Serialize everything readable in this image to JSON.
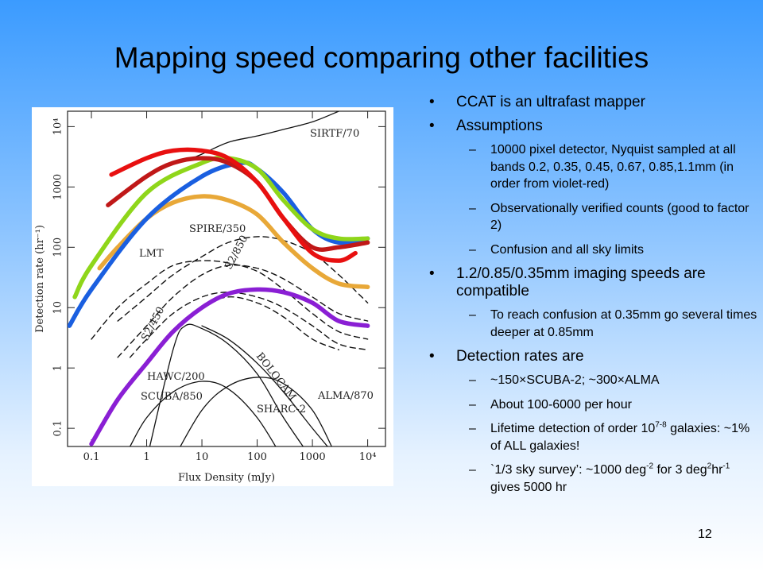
{
  "title": "Mapping speed comparing other facilities",
  "bullets": [
    {
      "text": "CCAT is an ultrafast mapper"
    },
    {
      "text": "Assumptions",
      "sub": [
        "10000 pixel detector, Nyquist sampled at all bands 0.2, 0.35, 0.45, 0.67, 0.85,1.1mm (in order from violet-red)",
        "Observationally verified counts (good to factor 2)",
        "Confusion and all sky limits"
      ]
    },
    {
      "text": "1.2/0.85/0.35mm imaging speeds are compatible",
      "sub": [
        "To reach confusion at 0.35mm go several times deeper at 0.85mm"
      ]
    },
    {
      "text": "Detection rates are",
      "sub": [
        "~150×SCUBA-2; ~300×ALMA",
        "About 100-6000 per hour",
        [
          "Lifetime detection of order 10",
          {
            "sup": "7-8"
          },
          " galaxies: ~1% of ALL galaxies!"
        ],
        [
          "`1/3 sky survey’: ~1000 deg",
          {
            "sup": "-2"
          },
          " for 3 deg",
          {
            "sup": "2"
          },
          "hr",
          {
            "sup": "-1"
          },
          " gives 5000 hr"
        ]
      ]
    }
  ],
  "page_number": "12",
  "chart_data": {
    "type": "line",
    "xlabel": "Flux Density (mJy)",
    "ylabel": "Detection rate (hr⁻¹)",
    "log_x": true,
    "log_y": true,
    "xlim": [
      0.037,
      21000
    ],
    "ylim": [
      0.05,
      18000
    ],
    "xticks": [
      0.1,
      1,
      10,
      100,
      1000,
      {
        "value": 10000,
        "label": "10⁴"
      }
    ],
    "yticks": [
      0.1,
      1,
      10,
      100,
      1000,
      {
        "value": 10000,
        "label": "10⁴"
      }
    ],
    "grid": false,
    "annotations": [
      "SIRTF/70",
      "SPIRE/350",
      "LMT",
      "S2/850",
      "S2/450",
      "HAWC/200",
      "BOLOCAM",
      "SCUBA/850",
      "SHARC-2",
      "ALMA/870"
    ],
    "series": [
      {
        "color": "#111111",
        "style": "solid",
        "x": [
          5,
          10,
          30,
          100,
          300,
          1000,
          3000
        ],
        "values": [
          2700,
          3500,
          5500,
          7000,
          9000,
          12000,
          18000
        ]
      },
      {
        "color": "#111111",
        "style": "dashed",
        "x": [
          0.3,
          1,
          3,
          10,
          30,
          100,
          300,
          1000,
          3000,
          10000
        ],
        "values": [
          6,
          15,
          35,
          70,
          120,
          150,
          130,
          80,
          35,
          12
        ]
      },
      {
        "color": "#111111",
        "style": "dashed",
        "x": [
          0.1,
          0.3,
          1,
          3,
          10,
          30,
          100,
          300,
          1000,
          3000,
          10000
        ],
        "values": [
          3,
          10,
          25,
          50,
          60,
          55,
          40,
          20,
          8,
          4,
          3
        ]
      },
      {
        "color": "#111111",
        "style": "dashed",
        "x": [
          0.3,
          1,
          3,
          10,
          30,
          100,
          300,
          1000,
          3000,
          10000
        ],
        "values": [
          1.5,
          5,
          15,
          35,
          50,
          45,
          30,
          15,
          8,
          6
        ]
      },
      {
        "color": "#111111",
        "style": "dashed",
        "x": [
          0.5,
          1,
          3,
          10,
          30,
          100,
          300,
          1000,
          3000,
          10000
        ],
        "values": [
          1.5,
          3,
          8,
          15,
          18,
          15,
          10,
          5,
          2.5,
          2
        ]
      },
      {
        "color": "#111111",
        "style": "dashed",
        "x": [
          0.8,
          3,
          10,
          30,
          100,
          300,
          1000,
          3000
        ],
        "values": [
          1,
          4,
          10,
          15,
          12,
          7,
          3,
          2
        ]
      },
      {
        "color": "#111111",
        "style": "solid",
        "x": [
          1,
          3,
          5,
          10,
          30,
          100,
          300,
          1000
        ],
        "values": [
          0.03,
          2,
          5,
          4.5,
          2.5,
          0.8,
          0.15,
          0.03
        ]
      },
      {
        "color": "#111111",
        "style": "solid",
        "x": [
          10,
          30,
          100,
          300,
          1000,
          3000
        ],
        "values": [
          5,
          3,
          1.2,
          0.4,
          0.1,
          0.03
        ]
      },
      {
        "color": "#111111",
        "style": "solid",
        "x": [
          0.5,
          1,
          3,
          10,
          30,
          100,
          300
        ],
        "values": [
          0.05,
          0.15,
          0.4,
          0.6,
          0.45,
          0.15,
          0.03
        ]
      },
      {
        "color": "#111111",
        "style": "solid",
        "x": [
          3,
          10,
          30,
          100,
          300,
          1000,
          2500
        ],
        "values": [
          0.03,
          0.2,
          0.5,
          0.7,
          0.55,
          0.2,
          0.04
        ]
      },
      {
        "color": "#8a1fd4",
        "style": "thick",
        "x": [
          0.1,
          0.3,
          1,
          3,
          10,
          30,
          100,
          300,
          1000,
          3000,
          10000
        ],
        "values": [
          0.055,
          0.3,
          1.2,
          4,
          10,
          17,
          20,
          18,
          12,
          6,
          5
        ]
      },
      {
        "color": "#e8a838",
        "style": "thick",
        "x": [
          0.14,
          0.3,
          1,
          3,
          10,
          30,
          100,
          300,
          1000,
          3000,
          10000
        ],
        "values": [
          45,
          100,
          300,
          550,
          700,
          600,
          350,
          120,
          45,
          25,
          22
        ]
      },
      {
        "color": "#1a5fe0",
        "style": "thick",
        "x": [
          0.04,
          0.1,
          1,
          10,
          50,
          100,
          300,
          1000,
          3000,
          10000
        ],
        "values": [
          5,
          20,
          300,
          1500,
          2500,
          2000,
          800,
          200,
          120,
          140
        ]
      },
      {
        "color": "#8fd61a",
        "style": "thick",
        "x": [
          0.05,
          0.1,
          1,
          10,
          30,
          100,
          300,
          1000,
          3000,
          10000
        ],
        "values": [
          15,
          50,
          800,
          2500,
          3000,
          2000,
          600,
          200,
          140,
          140
        ]
      },
      {
        "color": "#c01818",
        "style": "thick",
        "x": [
          0.2,
          1,
          3,
          10,
          30,
          100,
          300,
          1000,
          3000,
          10000
        ],
        "values": [
          500,
          1500,
          2500,
          3000,
          2500,
          1200,
          300,
          100,
          100,
          120
        ]
      },
      {
        "color": "#e81010",
        "style": "thick",
        "x": [
          0.23,
          1,
          3,
          10,
          30,
          100,
          300,
          1000,
          3000,
          6000
        ],
        "values": [
          1600,
          3000,
          4000,
          4000,
          3000,
          1200,
          300,
          80,
          60,
          80
        ]
      }
    ]
  }
}
